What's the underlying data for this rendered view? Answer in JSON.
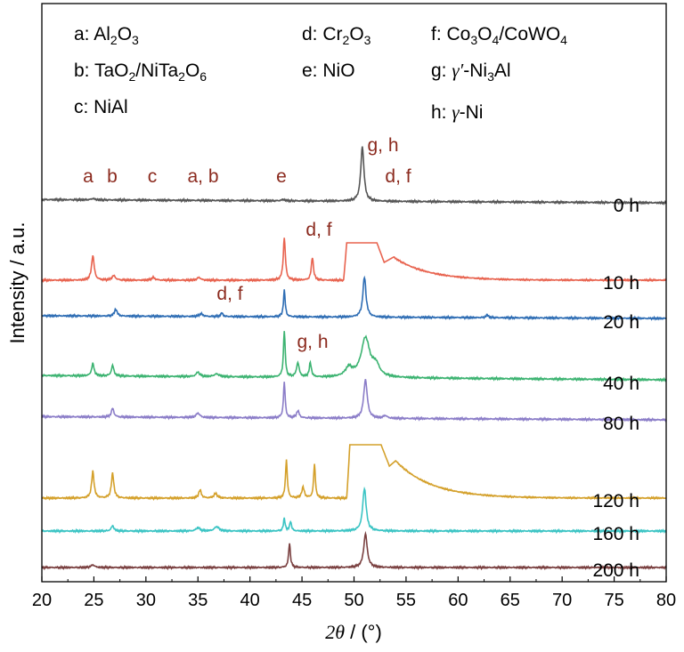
{
  "chart_data": {
    "type": "line",
    "xlabel_symbol": "2θ",
    "xlabel_unit": " / (°)",
    "ylabel": "Intensity / a.u.",
    "xlim": [
      20,
      80
    ],
    "xticks": [
      "20",
      "25",
      "30",
      "35",
      "40",
      "45",
      "50",
      "55",
      "60",
      "65",
      "70",
      "75",
      "80"
    ],
    "grid": false,
    "legend": [
      {
        "key": "a:",
        "parts": [
          [
            "Al",
            "n"
          ],
          [
            "2",
            "sub"
          ],
          [
            "O",
            "n"
          ],
          [
            "3",
            "sub"
          ]
        ]
      },
      {
        "key": "b:",
        "parts": [
          [
            "TaO",
            "n"
          ],
          [
            "2",
            "sub"
          ],
          [
            "/NiTa",
            "n"
          ],
          [
            "2",
            "sub"
          ],
          [
            "O",
            "n"
          ],
          [
            "6",
            "sub"
          ]
        ]
      },
      {
        "key": "c:",
        "parts": [
          [
            "NiAl",
            "n"
          ]
        ]
      },
      {
        "key": "d:",
        "parts": [
          [
            "Cr",
            "n"
          ],
          [
            "2",
            "sub"
          ],
          [
            "O",
            "n"
          ],
          [
            "3",
            "sub"
          ]
        ]
      },
      {
        "key": "e:",
        "parts": [
          [
            "NiO",
            "n"
          ]
        ]
      },
      {
        "key": "f:",
        "parts": [
          [
            "Co",
            "n"
          ],
          [
            "3",
            "sub"
          ],
          [
            "O",
            "n"
          ],
          [
            "4",
            "sub"
          ],
          [
            "/CoWO",
            "n"
          ],
          [
            "4",
            "sub"
          ]
        ]
      },
      {
        "key": "g:",
        "parts": [
          [
            "γ′",
            "it"
          ],
          [
            "-Ni",
            "n"
          ],
          [
            "3",
            "sub"
          ],
          [
            "Al",
            "n"
          ]
        ]
      },
      {
        "key": "h:",
        "parts": [
          [
            "γ",
            "it"
          ],
          [
            "-Ni",
            "n"
          ]
        ]
      }
    ],
    "annotations": [
      {
        "text": "a",
        "x": 24.9,
        "series": "0 h"
      },
      {
        "text": "b",
        "x": 27.0,
        "series": "0 h"
      },
      {
        "text": "c",
        "x": 30.5,
        "series": "0 h"
      },
      {
        "text": "a, b",
        "x": 35.2,
        "series": "0 h"
      },
      {
        "text": "e",
        "x": 43.2,
        "series": "0 h"
      },
      {
        "text": "g, h",
        "x": 52.9,
        "series": "0 h"
      },
      {
        "text": "d, f",
        "x": 54.4,
        "series": "0 h"
      },
      {
        "text": "d, f",
        "x": 46.0,
        "series": "10 h"
      },
      {
        "text": "d, f",
        "x": 37.3,
        "series": "20 h"
      },
      {
        "text": "g, h",
        "x": 45.6,
        "series": "40 h"
      }
    ],
    "series": [
      {
        "name": "0 h",
        "color": "#555555",
        "baseline": 30,
        "slope": 0.06,
        "peaks": [
          [
            50.8,
            62,
            0.18
          ],
          [
            24.9,
            1.5,
            0.2
          ],
          [
            43.2,
            1.5,
            0.2
          ]
        ]
      },
      {
        "name": "10 h",
        "color": "#E8634F",
        "baseline": 36,
        "slope": 0,
        "hump": {
          "start": 49.3,
          "end": 52.2,
          "top": 78,
          "tailTop": 62,
          "tailStart": 53.8,
          "decay": 3.2,
          "dip": 52.9,
          "dipY": 56
        },
        "peaks": [
          [
            24.9,
            28,
            0.15
          ],
          [
            26.9,
            5,
            0.2
          ],
          [
            30.7,
            3,
            0.2
          ],
          [
            35.1,
            3,
            0.2
          ],
          [
            43.3,
            48,
            0.12
          ],
          [
            46.0,
            26,
            0.12
          ]
        ]
      },
      {
        "name": "20 h",
        "color": "#2E6DB4",
        "baseline": 24,
        "slope": 0.05,
        "peaks": [
          [
            27.1,
            8,
            0.15
          ],
          [
            35.3,
            3,
            0.2
          ],
          [
            37.3,
            4,
            0.12
          ],
          [
            43.3,
            30,
            0.1
          ],
          [
            51.0,
            45,
            0.18
          ],
          [
            62.8,
            3,
            0.15
          ]
        ]
      },
      {
        "name": "40 h",
        "color": "#3CB371",
        "baseline": 34,
        "slope": 0.08,
        "peaks": [
          [
            24.9,
            14,
            0.14
          ],
          [
            26.8,
            12,
            0.14
          ],
          [
            35.0,
            5,
            0.2
          ],
          [
            36.8,
            3,
            0.3
          ],
          [
            43.3,
            52,
            0.1
          ],
          [
            44.6,
            16,
            0.15
          ],
          [
            45.8,
            16,
            0.12
          ],
          [
            49.5,
            10,
            0.4
          ],
          [
            51.1,
            44,
            0.5
          ],
          [
            52.1,
            12,
            0.4
          ]
        ]
      },
      {
        "name": "80 h",
        "color": "#8B7DC8",
        "baseline": 28,
        "slope": 0.06,
        "peaks": [
          [
            26.8,
            10,
            0.14
          ],
          [
            35.0,
            5,
            0.2
          ],
          [
            43.3,
            40,
            0.1
          ],
          [
            44.6,
            8,
            0.15
          ],
          [
            51.1,
            44,
            0.2
          ],
          [
            53.0,
            3,
            0.2
          ]
        ]
      },
      {
        "name": "120 h",
        "color": "#D4A02A",
        "baseline": 20,
        "slope": 0,
        "hump": {
          "start": 49.6,
          "end": 52.6,
          "top": 80,
          "tailTop": 62,
          "tailStart": 54.0,
          "decay": 3.4,
          "dip": 53.4,
          "dipY": 56
        },
        "peaks": [
          [
            24.9,
            30,
            0.14
          ],
          [
            26.8,
            28,
            0.14
          ],
          [
            35.2,
            9,
            0.15
          ],
          [
            36.7,
            5,
            0.2
          ],
          [
            43.5,
            44,
            0.1
          ],
          [
            45.1,
            12,
            0.15
          ],
          [
            46.2,
            38,
            0.1
          ]
        ]
      },
      {
        "name": "160 h",
        "color": "#3BC4C4",
        "baseline": 15,
        "slope": 0,
        "peaks": [
          [
            26.8,
            6,
            0.15
          ],
          [
            35.0,
            4,
            0.2
          ],
          [
            36.8,
            5,
            0.25
          ],
          [
            43.3,
            14,
            0.1
          ],
          [
            43.9,
            11,
            0.1
          ],
          [
            51.0,
            48,
            0.2
          ]
        ]
      },
      {
        "name": "200 h",
        "color": "#7A4040",
        "baseline": 12,
        "slope": 0,
        "peaks": [
          [
            24.9,
            3,
            0.2
          ],
          [
            43.8,
            28,
            0.1
          ],
          [
            51.1,
            38,
            0.2
          ]
        ]
      }
    ]
  }
}
